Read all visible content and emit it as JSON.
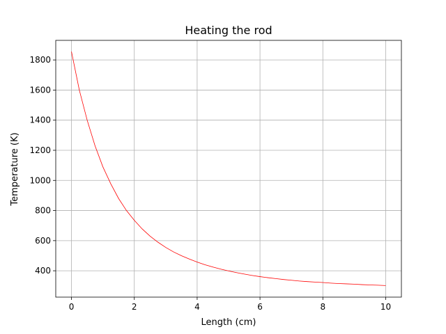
{
  "chart_data": {
    "type": "line",
    "title": "Heating the rod",
    "xlabel": "Length (cm)",
    "ylabel": "Temperature (K)",
    "xlim": [
      -0.5,
      10.5
    ],
    "ylim": [
      225,
      1930
    ],
    "xticks": [
      0,
      2,
      4,
      6,
      8,
      10
    ],
    "yticks": [
      400,
      600,
      800,
      1000,
      1200,
      1400,
      1600,
      1800
    ],
    "grid": true,
    "series": [
      {
        "color": "#ff0000",
        "x": [
          0,
          0.25,
          0.5,
          0.75,
          1,
          1.25,
          1.5,
          1.75,
          2,
          2.25,
          2.5,
          2.75,
          3,
          3.25,
          3.5,
          3.75,
          4,
          4.25,
          4.5,
          4.75,
          5,
          5.25,
          5.5,
          5.75,
          6,
          6.25,
          6.5,
          6.75,
          7,
          7.25,
          7.5,
          7.75,
          8,
          8.25,
          8.5,
          8.75,
          9,
          9.25,
          9.5,
          9.75,
          10
        ],
        "y": [
          1855,
          1600,
          1400,
          1230,
          1090,
          978,
          880,
          800,
          735,
          678,
          630,
          590,
          555,
          525,
          500,
          478,
          458,
          440,
          425,
          411,
          399,
          388,
          378,
          369,
          361,
          354,
          348,
          342,
          337,
          332,
          328,
          325,
          322,
          318,
          315,
          313,
          311,
          308,
          306,
          304,
          302
        ]
      }
    ]
  }
}
